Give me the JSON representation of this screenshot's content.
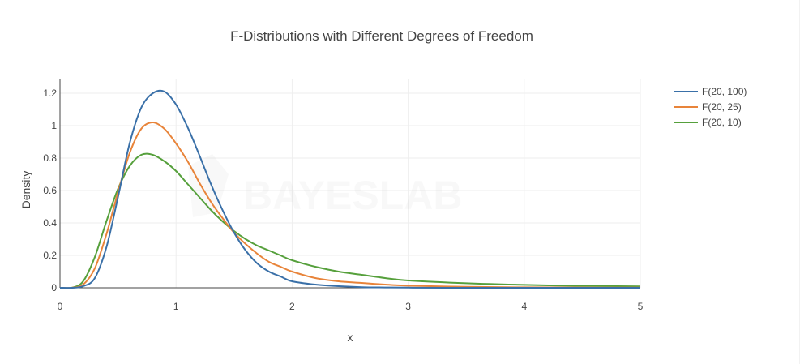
{
  "chart_data": {
    "type": "line",
    "title": "F-Distributions with Different Degrees of Freedom",
    "xlabel": "x",
    "ylabel": "Density",
    "xlim": [
      0,
      5
    ],
    "ylim": [
      0,
      1.28
    ],
    "grid": true,
    "legend_position": "top-right",
    "x_ticks": [
      0,
      1,
      2,
      3,
      4,
      5
    ],
    "y_ticks": [
      0,
      0.2,
      0.4,
      0.6,
      0.8,
      1,
      1.2
    ],
    "x_tick_labels": [
      "0",
      "1",
      "2",
      "3",
      "4",
      "5"
    ],
    "y_tick_labels": [
      "0",
      "0.2",
      "0.4",
      "0.6",
      "0.8",
      "1",
      "1.2"
    ],
    "x": [
      0,
      0.1,
      0.2,
      0.3,
      0.4,
      0.5,
      0.6,
      0.7,
      0.8,
      0.9,
      1.0,
      1.1,
      1.2,
      1.3,
      1.4,
      1.5,
      1.6,
      1.7,
      1.8,
      1.9,
      2.0,
      2.2,
      2.4,
      2.6,
      2.8,
      3.0,
      3.5,
      4.0,
      4.5,
      5.0
    ],
    "series": [
      {
        "name": "F(20, 100)",
        "color": "#3a70a8",
        "values": [
          0,
          0.0,
          0.01,
          0.06,
          0.25,
          0.56,
          0.89,
          1.11,
          1.2,
          1.21,
          1.13,
          0.99,
          0.82,
          0.64,
          0.48,
          0.34,
          0.23,
          0.15,
          0.1,
          0.07,
          0.04,
          0.02,
          0.01,
          0.004,
          0.002,
          0.001,
          0.0,
          0.0,
          0.0,
          0.0
        ]
      },
      {
        "name": "F(20, 25)",
        "color": "#e8843a",
        "values": [
          0,
          0.0,
          0.02,
          0.12,
          0.33,
          0.59,
          0.83,
          0.98,
          1.02,
          0.98,
          0.89,
          0.78,
          0.65,
          0.53,
          0.43,
          0.34,
          0.27,
          0.21,
          0.16,
          0.13,
          0.1,
          0.06,
          0.04,
          0.03,
          0.02,
          0.013,
          0.006,
          0.003,
          0.002,
          0.001
        ]
      },
      {
        "name": "F(20, 10)",
        "color": "#56a03c",
        "values": [
          0,
          0.0,
          0.04,
          0.19,
          0.41,
          0.61,
          0.75,
          0.82,
          0.82,
          0.78,
          0.72,
          0.64,
          0.56,
          0.48,
          0.41,
          0.35,
          0.3,
          0.26,
          0.23,
          0.2,
          0.17,
          0.13,
          0.1,
          0.08,
          0.06,
          0.045,
          0.028,
          0.018,
          0.012,
          0.009
        ]
      }
    ]
  },
  "watermark": {
    "text": "BAYESLAB"
  }
}
